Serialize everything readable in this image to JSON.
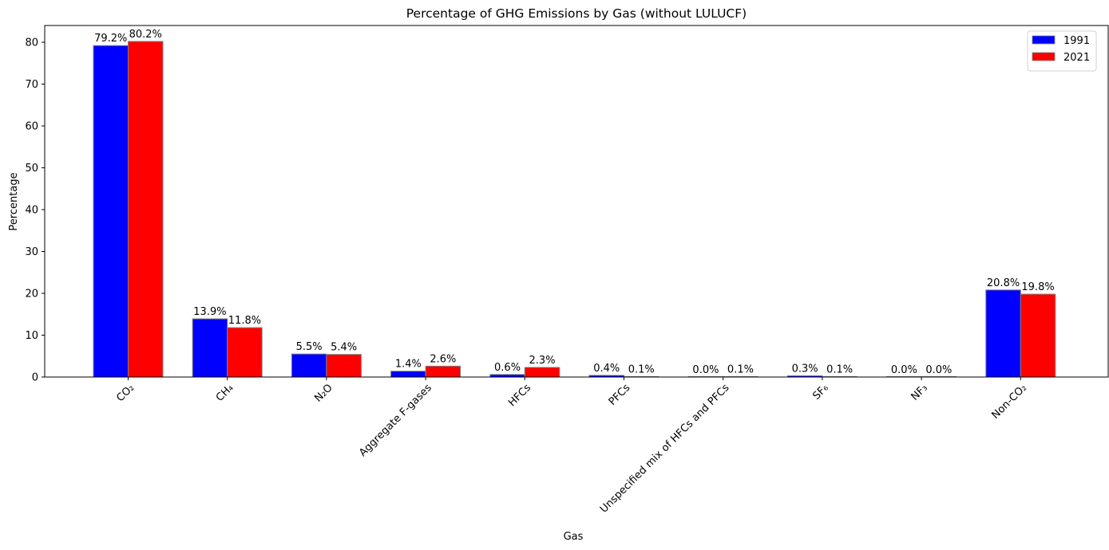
{
  "chart_data": {
    "type": "bar",
    "title": "Percentage of GHG Emissions by Gas (without LULUCF)",
    "xlabel": "Gas",
    "ylabel": "Percentage",
    "ylim": [
      0,
      84
    ],
    "yticks": [
      0,
      10,
      20,
      30,
      40,
      50,
      60,
      70,
      80
    ],
    "categories": [
      "CO₂",
      "CH₄",
      "N₂O",
      "Aggregate F-gases",
      "HFCs",
      "PFCs",
      "Unspecified mix of HFCs and PFCs",
      "SF₆",
      "NF₃",
      "Non-CO₂"
    ],
    "series": [
      {
        "name": "1991",
        "color": "#0000ff",
        "values": [
          79.2,
          13.9,
          5.5,
          1.4,
          0.6,
          0.4,
          0.0,
          0.3,
          0.0,
          20.8
        ],
        "labels": [
          "79.2%",
          "13.9%",
          "5.5%",
          "1.4%",
          "0.6%",
          "0.4%",
          "0.0%",
          "0.3%",
          "0.0%",
          "20.8%"
        ]
      },
      {
        "name": "2021",
        "color": "#ff0000",
        "values": [
          80.2,
          11.8,
          5.4,
          2.6,
          2.3,
          0.1,
          0.1,
          0.1,
          0.0,
          19.8
        ],
        "labels": [
          "80.2%",
          "11.8%",
          "5.4%",
          "2.6%",
          "2.3%",
          "0.1%",
          "0.1%",
          "0.1%",
          "0.0%",
          "19.8%"
        ]
      }
    ],
    "legend": "top-right",
    "grid": false
  }
}
